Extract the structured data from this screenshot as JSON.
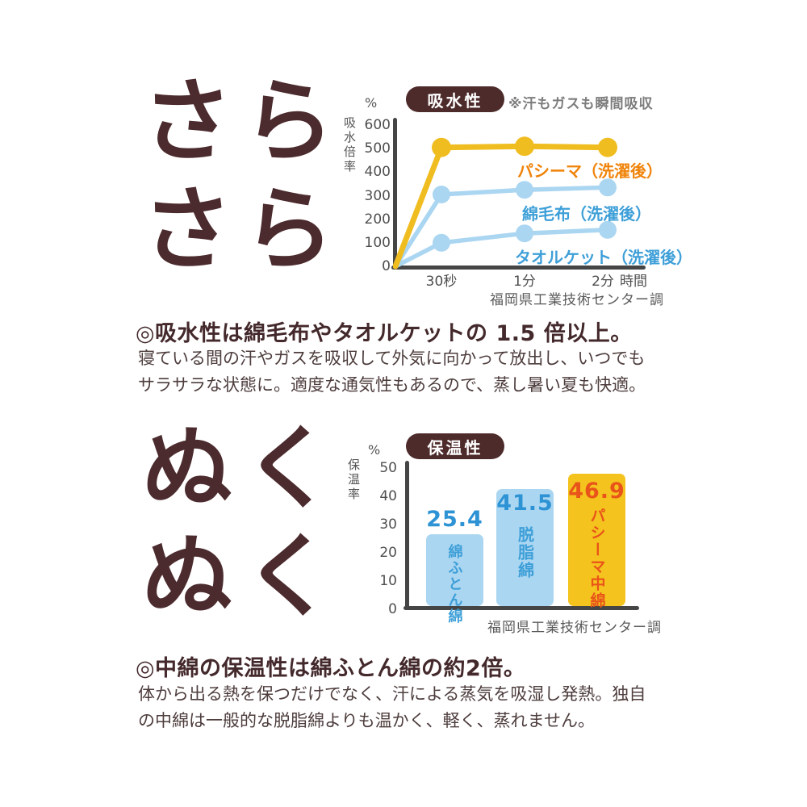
{
  "colors": {
    "brand_brown": "#4e2b2b",
    "big_text": "#4c2b2e",
    "pasima_yellow": "#f0bd20",
    "light_blue": "#abd6f1",
    "legend_orange": "#f0830a",
    "legend_blue": "#3e9fd8",
    "value_blue": "#2d93d5",
    "value_red_orange": "#e9541a",
    "axis_gray": "#454545"
  },
  "section_absorbency": {
    "big_text_line1": "さら",
    "big_text_line2": "さら",
    "heading": "◎吸水性は綿毛布やタオルケットの 1.5 倍以上。",
    "body_line1": "寝ている間の汗やガスを吸収して外気に向かって放出し、いつでも",
    "body_line2": "サラサラな状態に。適度な通気性もあるので、蒸し暑い夏も快適。"
  },
  "section_warmth": {
    "big_text_line1": "ぬく",
    "big_text_line2": "ぬく",
    "heading": "◎中綿の保温性は綿ふとん綿の約2倍。",
    "body_line1": "体から出る熱を保つだけでなく、汗による蒸気を吸湿し発熱。独自",
    "body_line2": "の中綿は一般的な脱脂綿よりも温かく、軽く、蒸れません。"
  },
  "chart_data": [
    {
      "type": "line",
      "title": "吸水性",
      "note": "※汗もガスも瞬間吸収",
      "unit": "%",
      "ylabel": "吸水倍率",
      "xlabel": "時間",
      "x_categories": [
        "30秒",
        "1分",
        "2分"
      ],
      "ylim": [
        0,
        600
      ],
      "yticks": [
        0,
        100,
        200,
        300,
        400,
        500,
        600
      ],
      "grid": false,
      "legend_position": "inline-right-of-lines",
      "series": [
        {
          "name": "パシーマ（洗濯後）",
          "values": [
            505,
            510,
            505
          ],
          "color": "#f0bd20",
          "label_color": "#f0830a"
        },
        {
          "name": "綿毛布（洗濯後）",
          "values": [
            305,
            325,
            335
          ],
          "color": "#abd6f1",
          "label_color": "#3e9fd8"
        },
        {
          "name": "タオルケット（洗濯後）",
          "values": [
            100,
            140,
            155
          ],
          "color": "#abd6f1",
          "label_color": "#3e9fd8"
        }
      ],
      "source": "福岡県工業技術センター調"
    },
    {
      "type": "bar",
      "title": "保温性",
      "unit": "%",
      "ylabel": "保温率",
      "categories": [
        "綿ふとん綿",
        "脱脂綿",
        "パシーマ中綿"
      ],
      "values": [
        25.4,
        41.5,
        46.9
      ],
      "ylim": [
        0,
        50
      ],
      "yticks": [
        0,
        10,
        20,
        30,
        40,
        50
      ],
      "grid": false,
      "bar_colors": [
        "#abd6f1",
        "#abd6f1",
        "#f4c31d"
      ],
      "value_label_colors": [
        "#2d93d5",
        "#2d93d5",
        "#e9541a"
      ],
      "category_label_colors": [
        "#3e9fd8",
        "#3e9fd8",
        "#e9541a"
      ],
      "source": "福岡県工業技術センター調"
    }
  ]
}
